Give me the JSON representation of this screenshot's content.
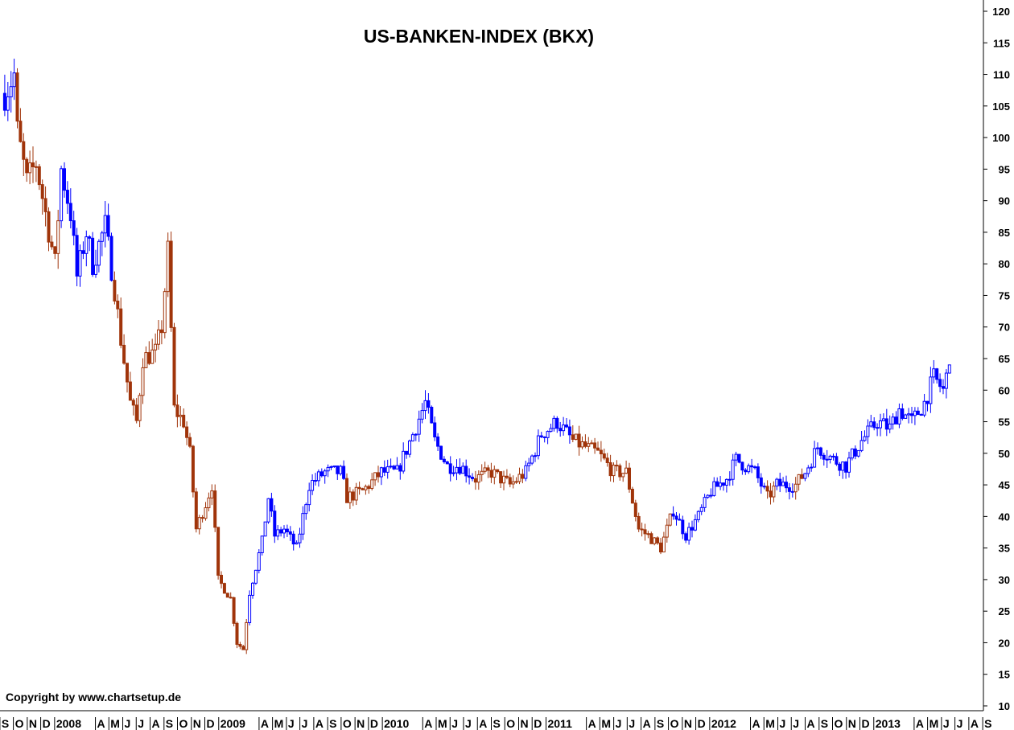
{
  "chart_data": {
    "type": "candlestick",
    "title": "US-BANKEN-INDEX (BKX)",
    "copyright": "Copyright by www.chartsetup.de",
    "interval": "weekly",
    "ylim": [
      10,
      120
    ],
    "y_ticks": [
      10,
      15,
      20,
      25,
      30,
      35,
      40,
      45,
      50,
      55,
      60,
      65,
      70,
      75,
      80,
      85,
      90,
      95,
      100,
      105,
      110,
      115,
      120
    ],
    "y_axis_position": "right",
    "grid": false,
    "colors": {
      "up": "#0000ff",
      "down": "#a0340a",
      "axis": "#000000"
    },
    "x_labels": [
      {
        "text": "S",
        "month": "2007-09"
      },
      {
        "text": "O",
        "month": "2007-10"
      },
      {
        "text": "N",
        "month": "2007-11"
      },
      {
        "text": "D",
        "month": "2007-12"
      },
      {
        "text": "2008",
        "month": "2008-01"
      },
      {
        "text": "A",
        "month": "2008-04"
      },
      {
        "text": "M",
        "month": "2008-05"
      },
      {
        "text": "J",
        "month": "2008-06"
      },
      {
        "text": "J",
        "month": "2008-07"
      },
      {
        "text": "A",
        "month": "2008-08"
      },
      {
        "text": "S",
        "month": "2008-09"
      },
      {
        "text": "O",
        "month": "2008-10"
      },
      {
        "text": "N",
        "month": "2008-11"
      },
      {
        "text": "D",
        "month": "2008-12"
      },
      {
        "text": "2009",
        "month": "2009-01"
      },
      {
        "text": "A",
        "month": "2009-04"
      },
      {
        "text": "M",
        "month": "2009-05"
      },
      {
        "text": "J",
        "month": "2009-06"
      },
      {
        "text": "J",
        "month": "2009-07"
      },
      {
        "text": "A",
        "month": "2009-08"
      },
      {
        "text": "S",
        "month": "2009-09"
      },
      {
        "text": "O",
        "month": "2009-10"
      },
      {
        "text": "N",
        "month": "2009-11"
      },
      {
        "text": "D",
        "month": "2009-12"
      },
      {
        "text": "2010",
        "month": "2010-01"
      },
      {
        "text": "A",
        "month": "2010-04"
      },
      {
        "text": "M",
        "month": "2010-05"
      },
      {
        "text": "J",
        "month": "2010-06"
      },
      {
        "text": "J",
        "month": "2010-07"
      },
      {
        "text": "A",
        "month": "2010-08"
      },
      {
        "text": "S",
        "month": "2010-09"
      },
      {
        "text": "O",
        "month": "2010-10"
      },
      {
        "text": "N",
        "month": "2010-11"
      },
      {
        "text": "D",
        "month": "2010-12"
      },
      {
        "text": "2011",
        "month": "2011-01"
      },
      {
        "text": "A",
        "month": "2011-04"
      },
      {
        "text": "M",
        "month": "2011-05"
      },
      {
        "text": "J",
        "month": "2011-06"
      },
      {
        "text": "J",
        "month": "2011-07"
      },
      {
        "text": "A",
        "month": "2011-08"
      },
      {
        "text": "S",
        "month": "2011-09"
      },
      {
        "text": "O",
        "month": "2011-10"
      },
      {
        "text": "N",
        "month": "2011-11"
      },
      {
        "text": "D",
        "month": "2011-12"
      },
      {
        "text": "2012",
        "month": "2012-01"
      },
      {
        "text": "A",
        "month": "2012-04"
      },
      {
        "text": "M",
        "month": "2012-05"
      },
      {
        "text": "J",
        "month": "2012-06"
      },
      {
        "text": "J",
        "month": "2012-07"
      },
      {
        "text": "A",
        "month": "2012-08"
      },
      {
        "text": "S",
        "month": "2012-09"
      },
      {
        "text": "O",
        "month": "2012-10"
      },
      {
        "text": "N",
        "month": "2012-11"
      },
      {
        "text": "D",
        "month": "2012-12"
      },
      {
        "text": "2013",
        "month": "2013-01"
      },
      {
        "text": "A",
        "month": "2013-04"
      },
      {
        "text": "M",
        "month": "2013-05"
      },
      {
        "text": "J",
        "month": "2013-06"
      },
      {
        "text": "J",
        "month": "2013-07"
      },
      {
        "text": "A",
        "month": "2013-08"
      },
      {
        "text": "S",
        "month": "2013-09"
      }
    ],
    "close_approx": [
      {
        "date": "2007-09-10",
        "close": 107,
        "trend": "up"
      },
      {
        "date": "2007-10-01",
        "close": 110,
        "trend": "up"
      },
      {
        "date": "2007-10-08",
        "close": 101,
        "trend": "down"
      },
      {
        "date": "2007-10-29",
        "close": 93,
        "trend": "down"
      },
      {
        "date": "2007-11-19",
        "close": 96,
        "trend": "down"
      },
      {
        "date": "2007-12-10",
        "close": 88,
        "trend": "down"
      },
      {
        "date": "2007-12-31",
        "close": 80,
        "trend": "down"
      },
      {
        "date": "2008-01-14",
        "close": 95,
        "trend": "up"
      },
      {
        "date": "2008-02-04",
        "close": 88,
        "trend": "up"
      },
      {
        "date": "2008-02-18",
        "close": 78,
        "trend": "up"
      },
      {
        "date": "2008-03-10",
        "close": 85,
        "trend": "up"
      },
      {
        "date": "2008-03-24",
        "close": 80,
        "trend": "up"
      },
      {
        "date": "2008-04-21",
        "close": 86,
        "trend": "up"
      },
      {
        "date": "2008-05-12",
        "close": 76,
        "trend": "down"
      },
      {
        "date": "2008-05-26",
        "close": 68,
        "trend": "down"
      },
      {
        "date": "2008-06-16",
        "close": 58,
        "trend": "down"
      },
      {
        "date": "2008-06-30",
        "close": 55,
        "trend": "down"
      },
      {
        "date": "2008-07-14",
        "close": 65,
        "trend": "down"
      },
      {
        "date": "2008-08-11",
        "close": 66,
        "trend": "down"
      },
      {
        "date": "2008-08-25",
        "close": 70,
        "trend": "down"
      },
      {
        "date": "2008-09-08",
        "close": 82,
        "trend": "down"
      },
      {
        "date": "2008-09-22",
        "close": 57,
        "trend": "down"
      },
      {
        "date": "2008-10-13",
        "close": 55,
        "trend": "down"
      },
      {
        "date": "2008-10-27",
        "close": 50,
        "trend": "down"
      },
      {
        "date": "2008-11-10",
        "close": 38,
        "trend": "down"
      },
      {
        "date": "2008-12-01",
        "close": 42,
        "trend": "down"
      },
      {
        "date": "2008-12-15",
        "close": 45,
        "trend": "down"
      },
      {
        "date": "2008-12-29",
        "close": 30,
        "trend": "down"
      },
      {
        "date": "2009-01-26",
        "close": 27,
        "trend": "down"
      },
      {
        "date": "2009-02-09",
        "close": 20,
        "trend": "down"
      },
      {
        "date": "2009-02-23",
        "close": 19,
        "trend": "down"
      },
      {
        "date": "2009-03-09",
        "close": 28,
        "trend": "up"
      },
      {
        "date": "2009-04-06",
        "close": 36,
        "trend": "up"
      },
      {
        "date": "2009-04-20",
        "close": 43,
        "trend": "up"
      },
      {
        "date": "2009-05-04",
        "close": 37,
        "trend": "up"
      },
      {
        "date": "2009-05-25",
        "close": 38,
        "trend": "up"
      },
      {
        "date": "2009-06-22",
        "close": 35,
        "trend": "up"
      },
      {
        "date": "2009-07-20",
        "close": 45,
        "trend": "up"
      },
      {
        "date": "2009-08-24",
        "close": 47,
        "trend": "up"
      },
      {
        "date": "2009-09-28",
        "close": 47,
        "trend": "up"
      },
      {
        "date": "2009-10-12",
        "close": 43,
        "trend": "down"
      },
      {
        "date": "2009-11-16",
        "close": 44,
        "trend": "down"
      },
      {
        "date": "2009-12-28",
        "close": 47,
        "trend": "up"
      },
      {
        "date": "2010-02-01",
        "close": 47,
        "trend": "up"
      },
      {
        "date": "2010-03-08",
        "close": 53,
        "trend": "up"
      },
      {
        "date": "2010-04-05",
        "close": 58,
        "trend": "up"
      },
      {
        "date": "2010-04-26",
        "close": 52,
        "trend": "up"
      },
      {
        "date": "2010-05-24",
        "close": 48,
        "trend": "up"
      },
      {
        "date": "2010-06-21",
        "close": 48,
        "trend": "up"
      },
      {
        "date": "2010-07-26",
        "close": 46,
        "trend": "down"
      },
      {
        "date": "2010-08-30",
        "close": 47,
        "trend": "down"
      },
      {
        "date": "2010-10-11",
        "close": 45,
        "trend": "down"
      },
      {
        "date": "2010-11-15",
        "close": 47,
        "trend": "up"
      },
      {
        "date": "2010-12-20",
        "close": 53,
        "trend": "up"
      },
      {
        "date": "2011-01-24",
        "close": 55,
        "trend": "up"
      },
      {
        "date": "2011-02-28",
        "close": 52,
        "trend": "down"
      },
      {
        "date": "2011-04-25",
        "close": 50,
        "trend": "down"
      },
      {
        "date": "2011-05-30",
        "close": 47,
        "trend": "down"
      },
      {
        "date": "2011-06-27",
        "close": 47,
        "trend": "down"
      },
      {
        "date": "2011-07-25",
        "close": 38,
        "trend": "down"
      },
      {
        "date": "2011-08-15",
        "close": 37,
        "trend": "down"
      },
      {
        "date": "2011-09-12",
        "close": 35,
        "trend": "down"
      },
      {
        "date": "2011-10-10",
        "close": 41,
        "trend": "up"
      },
      {
        "date": "2011-11-07",
        "close": 37,
        "trend": "up"
      },
      {
        "date": "2011-12-05",
        "close": 40,
        "trend": "up"
      },
      {
        "date": "2012-01-02",
        "close": 44,
        "trend": "up"
      },
      {
        "date": "2012-02-06",
        "close": 46,
        "trend": "up"
      },
      {
        "date": "2012-02-27",
        "close": 49,
        "trend": "up"
      },
      {
        "date": "2012-04-09",
        "close": 47,
        "trend": "up"
      },
      {
        "date": "2012-05-07",
        "close": 43,
        "trend": "down"
      },
      {
        "date": "2012-05-28",
        "close": 45,
        "trend": "up"
      },
      {
        "date": "2012-07-09",
        "close": 45,
        "trend": "down"
      },
      {
        "date": "2012-07-30",
        "close": 47,
        "trend": "up"
      },
      {
        "date": "2012-08-27",
        "close": 51,
        "trend": "up"
      },
      {
        "date": "2012-10-01",
        "close": 49,
        "trend": "up"
      },
      {
        "date": "2012-10-29",
        "close": 48,
        "trend": "up"
      },
      {
        "date": "2012-12-03",
        "close": 52,
        "trend": "up"
      },
      {
        "date": "2013-01-07",
        "close": 55,
        "trend": "up"
      },
      {
        "date": "2013-02-04",
        "close": 54,
        "trend": "up"
      },
      {
        "date": "2013-02-25",
        "close": 57,
        "trend": "up"
      },
      {
        "date": "2013-03-25",
        "close": 55,
        "trend": "up"
      },
      {
        "date": "2013-04-22",
        "close": 58,
        "trend": "up"
      },
      {
        "date": "2013-05-13",
        "close": 62,
        "trend": "up"
      },
      {
        "date": "2013-06-03",
        "close": 60,
        "trend": "up"
      },
      {
        "date": "2013-06-17",
        "close": 64,
        "trend": "up"
      }
    ]
  }
}
